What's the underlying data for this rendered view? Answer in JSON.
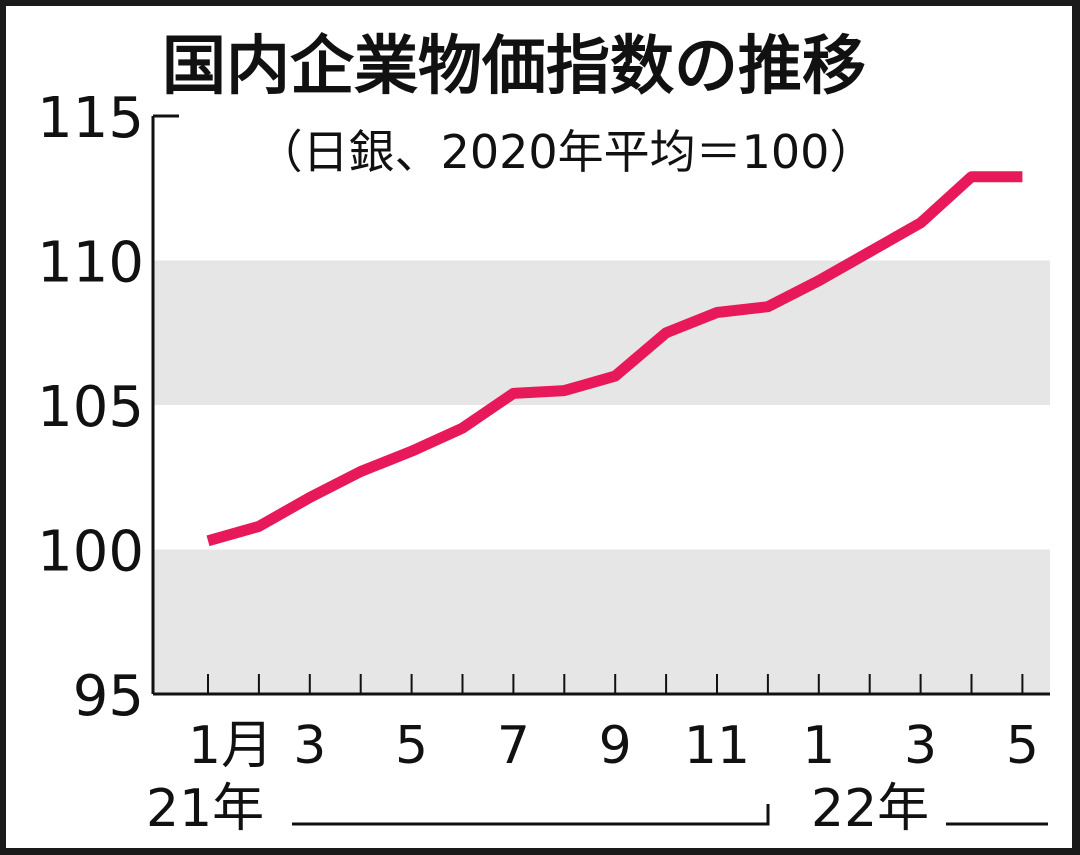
{
  "chart_data": {
    "type": "line",
    "title": "国内企業物価指数の推移",
    "subtitle": "（日銀、2020年平均＝100）",
    "xlabel": "",
    "ylabel": "",
    "ylim": [
      95,
      115
    ],
    "yticks": [
      "95",
      "100",
      "105",
      "110",
      "115"
    ],
    "grid": "alternating horizontal bands",
    "x": [
      "2021-01",
      "2021-02",
      "2021-03",
      "2021-04",
      "2021-05",
      "2021-06",
      "2021-07",
      "2021-08",
      "2021-09",
      "2021-10",
      "2021-11",
      "2021-12",
      "2022-01",
      "2022-02",
      "2022-03",
      "2022-04",
      "2022-05"
    ],
    "xtick_labels": [
      "1月",
      "",
      "3",
      "",
      "5",
      "",
      "7",
      "",
      "9",
      "",
      "11",
      "",
      "1",
      "",
      "3",
      "",
      "5"
    ],
    "year_labels": [
      "21年",
      "22年"
    ],
    "series": [
      {
        "values": [
          100.3,
          100.8,
          101.8,
          102.7,
          103.4,
          104.2,
          105.4,
          105.5,
          106.0,
          107.5,
          108.2,
          108.4,
          109.3,
          110.3,
          111.3,
          112.9,
          112.9
        ]
      }
    ],
    "line_color": "#e8195a",
    "band_color": "#e6e6e6",
    "axis_color": "#111111"
  }
}
